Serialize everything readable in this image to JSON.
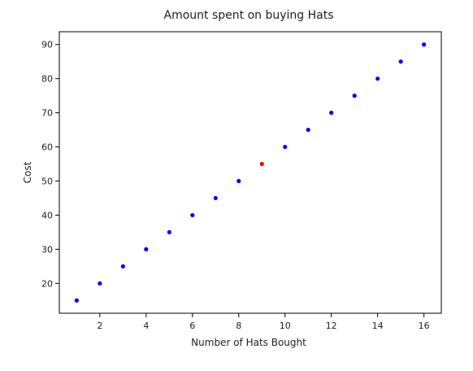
{
  "chart_data": {
    "type": "scatter",
    "title": "Amount spent on buying Hats",
    "xlabel": "Number of Hats Bought",
    "ylabel": "Cost",
    "xlim": [
      0.25,
      16.75
    ],
    "ylim": [
      11.25,
      93.75
    ],
    "grid": false,
    "x_ticks": [
      2,
      4,
      6,
      8,
      10,
      12,
      14,
      16
    ],
    "y_ticks": [
      20,
      30,
      40,
      50,
      60,
      70,
      80,
      90
    ],
    "series": [
      {
        "color": "#0000ff",
        "points": [
          [
            1,
            15
          ],
          [
            2,
            20
          ],
          [
            3,
            25
          ],
          [
            4,
            30
          ],
          [
            5,
            35
          ],
          [
            6,
            40
          ],
          [
            7,
            45
          ],
          [
            8,
            50
          ],
          [
            10,
            60
          ],
          [
            11,
            65
          ],
          [
            12,
            70
          ],
          [
            13,
            75
          ],
          [
            14,
            80
          ],
          [
            15,
            85
          ],
          [
            16,
            90
          ]
        ]
      },
      {
        "color": "#ff0000",
        "points": [
          [
            9,
            55
          ]
        ]
      }
    ]
  }
}
